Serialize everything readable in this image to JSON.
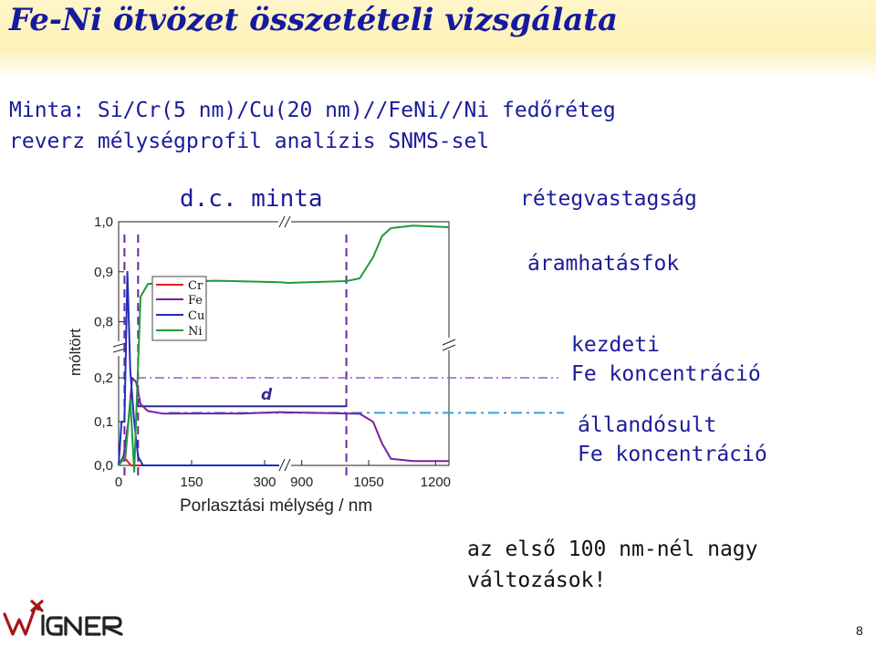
{
  "slide": {
    "title": "Fe-Ni ötvözet összetételi vizsgálata",
    "subtitle_line1": "Minta: Si/Cr(5 nm)/Cu(20 nm)//FeNi//Ni fedőréteg",
    "subtitle_line2": "reverz mélységprofil analízis SNMS-sel",
    "label_thickness": "rétegvastagság",
    "label_current_eff": "áramhatásfok",
    "label_initial_1": "kezdeti",
    "label_initial_2": "Fe koncentráció",
    "label_steady_1": "állandósult",
    "label_steady_2": "Fe koncentráció",
    "note_1": "az első 100 nm-nél nagy",
    "note_2": "változások!",
    "page_number": "8",
    "logo_text": "wigner"
  },
  "colors": {
    "title": "#161a9e",
    "text_blue": "#1a1c99",
    "title_band": "#fdf1b8",
    "Cr": "#e31a1c",
    "Fe": "#7a1fa0",
    "Cu": "#1f2ebd",
    "Ni": "#1f9a3a",
    "d_line": "#2a2a8a",
    "guide_initial": "#9b59d0",
    "guide_steady": "#3aa0d8"
  },
  "chart_data": {
    "type": "line",
    "title": "d.c. minta",
    "xlabel": "Porlasztási mélység / nm",
    "ylabel": "móltört",
    "x_ticks": [
      "0",
      "150",
      "300",
      "900",
      "1050",
      "1200"
    ],
    "y_ticks": [
      "0,0",
      "0,1",
      "0,2",
      "0,8",
      "0,9",
      "1,0"
    ],
    "x_segments": [
      [
        0,
        330
      ],
      [
        870,
        1230
      ]
    ],
    "y_segments": [
      [
        0,
        0.25
      ],
      [
        0.75,
        1.0
      ]
    ],
    "grid": false,
    "legend_position": "top-left",
    "annotation_d": "d",
    "series": [
      {
        "name": "Cr",
        "x": [
          0,
          5,
          10,
          18,
          25,
          40,
          330
        ],
        "y": [
          0.0,
          0.01,
          0.02,
          0.01,
          0.0,
          0.0,
          0.0
        ]
      },
      {
        "name": "Fe",
        "x": [
          0,
          10,
          20,
          28,
          36,
          45,
          60,
          90,
          150,
          250,
          330,
          870,
          1000,
          1030,
          1060,
          1080,
          1100,
          1150,
          1230
        ],
        "y": [
          0.0,
          0.02,
          0.1,
          0.2,
          0.19,
          0.14,
          0.123,
          0.12,
          0.12,
          0.12,
          0.12,
          0.12,
          0.12,
          0.117,
          0.1,
          0.05,
          0.015,
          0.01,
          0.01
        ]
      },
      {
        "name": "Cu",
        "x": [
          0,
          6,
          12,
          18,
          24,
          32,
          40,
          50,
          330
        ],
        "y": [
          0.0,
          0.1,
          0.6,
          0.9,
          0.7,
          0.1,
          0.02,
          0.0,
          0.0
        ]
      },
      {
        "name": "Ni",
        "x": [
          0,
          14,
          24,
          32,
          45,
          60,
          100,
          200,
          330,
          870,
          1000,
          1030,
          1060,
          1080,
          1100,
          1150,
          1230
        ],
        "y": [
          0.0,
          0.02,
          0.15,
          0.5,
          0.85,
          0.875,
          0.878,
          0.88,
          0.88,
          0.88,
          0.88,
          0.885,
          0.93,
          0.97,
          0.985,
          0.99,
          0.99
        ]
      }
    ],
    "vertical_markers_x": [
      12,
      40,
      1000
    ],
    "d_range_x": [
      40,
      1000
    ],
    "d_level_y": 0.135,
    "guide_initial_y": 0.2,
    "guide_steady_y": 0.12
  }
}
